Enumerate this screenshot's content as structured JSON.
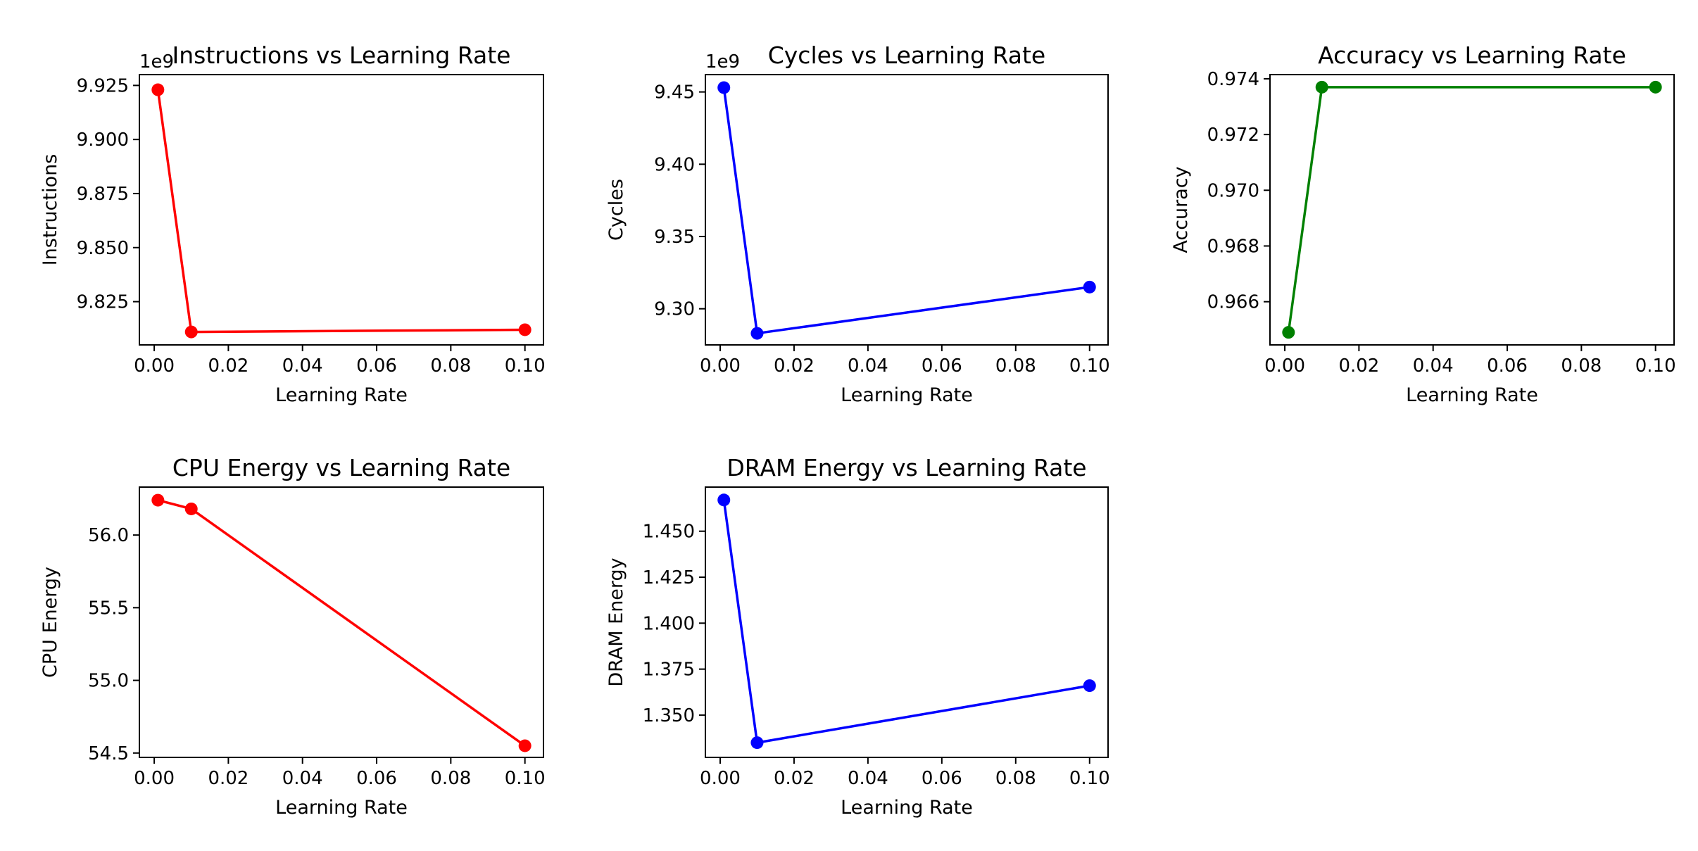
{
  "chart_data": [
    {
      "type": "line",
      "title": "Instructions vs Learning Rate",
      "xlabel": "Learning Rate",
      "ylabel": "Instructions",
      "color": "#ff0000",
      "offset_text": "1e9",
      "x": [
        0.001,
        0.01,
        0.1
      ],
      "y": [
        9923000000,
        9811000000,
        9812000000
      ],
      "xlim": [
        -0.004,
        0.105
      ],
      "ylim": [
        9805000000,
        9930000000
      ],
      "xticks": [
        0.0,
        0.02,
        0.04,
        0.06,
        0.08,
        0.1
      ],
      "xtick_labels": [
        "0.00",
        "0.02",
        "0.04",
        "0.06",
        "0.08",
        "0.10"
      ],
      "yticks": [
        9825000000,
        9850000000,
        9875000000,
        9900000000,
        9925000000
      ],
      "ytick_labels": [
        "9.825",
        "9.850",
        "9.875",
        "9.900",
        "9.925"
      ],
      "grid": false
    },
    {
      "type": "line",
      "title": "Cycles vs Learning Rate",
      "xlabel": "Learning Rate",
      "ylabel": "Cycles",
      "color": "#0000ff",
      "offset_text": "1e9",
      "x": [
        0.001,
        0.01,
        0.1
      ],
      "y": [
        9453000000,
        9283000000,
        9315000000
      ],
      "xlim": [
        -0.004,
        0.105
      ],
      "ylim": [
        9275000000,
        9462000000
      ],
      "xticks": [
        0.0,
        0.02,
        0.04,
        0.06,
        0.08,
        0.1
      ],
      "xtick_labels": [
        "0.00",
        "0.02",
        "0.04",
        "0.06",
        "0.08",
        "0.10"
      ],
      "yticks": [
        9300000000,
        9350000000,
        9400000000,
        9450000000
      ],
      "ytick_labels": [
        "9.30",
        "9.35",
        "9.40",
        "9.45"
      ],
      "grid": false
    },
    {
      "type": "line",
      "title": "Accuracy vs Learning Rate",
      "xlabel": "Learning Rate",
      "ylabel": "Accuracy",
      "color": "#008000",
      "offset_text": "",
      "x": [
        0.001,
        0.01,
        0.1
      ],
      "y": [
        0.9649,
        0.9737,
        0.9737
      ],
      "xlim": [
        -0.004,
        0.105
      ],
      "ylim": [
        0.96445,
        0.97415
      ],
      "xticks": [
        0.0,
        0.02,
        0.04,
        0.06,
        0.08,
        0.1
      ],
      "xtick_labels": [
        "0.00",
        "0.02",
        "0.04",
        "0.06",
        "0.08",
        "0.10"
      ],
      "yticks": [
        0.966,
        0.968,
        0.97,
        0.972,
        0.974
      ],
      "ytick_labels": [
        "0.966",
        "0.968",
        "0.970",
        "0.972",
        "0.974"
      ],
      "grid": false
    },
    {
      "type": "line",
      "title": "CPU Energy vs Learning Rate",
      "xlabel": "Learning Rate",
      "ylabel": "CPU Energy",
      "color": "#ff0000",
      "offset_text": "",
      "x": [
        0.001,
        0.01,
        0.1
      ],
      "y": [
        56.24,
        56.18,
        54.55
      ],
      "xlim": [
        -0.004,
        0.105
      ],
      "ylim": [
        54.47,
        56.33
      ],
      "xticks": [
        0.0,
        0.02,
        0.04,
        0.06,
        0.08,
        0.1
      ],
      "xtick_labels": [
        "0.00",
        "0.02",
        "0.04",
        "0.06",
        "0.08",
        "0.10"
      ],
      "yticks": [
        54.5,
        55.0,
        55.5,
        56.0
      ],
      "ytick_labels": [
        "54.5",
        "55.0",
        "55.5",
        "56.0"
      ],
      "grid": false
    },
    {
      "type": "line",
      "title": "DRAM Energy vs Learning Rate",
      "xlabel": "Learning Rate",
      "ylabel": "DRAM Energy",
      "color": "#0000ff",
      "offset_text": "",
      "x": [
        0.001,
        0.01,
        0.1
      ],
      "y": [
        1.467,
        1.335,
        1.366
      ],
      "xlim": [
        -0.004,
        0.105
      ],
      "ylim": [
        1.327,
        1.474
      ],
      "xticks": [
        0.0,
        0.02,
        0.04,
        0.06,
        0.08,
        0.1
      ],
      "xtick_labels": [
        "0.00",
        "0.02",
        "0.04",
        "0.06",
        "0.08",
        "0.10"
      ],
      "yticks": [
        1.35,
        1.375,
        1.4,
        1.425,
        1.45
      ],
      "ytick_labels": [
        "1.350",
        "1.375",
        "1.400",
        "1.425",
        "1.450"
      ],
      "grid": false
    }
  ]
}
